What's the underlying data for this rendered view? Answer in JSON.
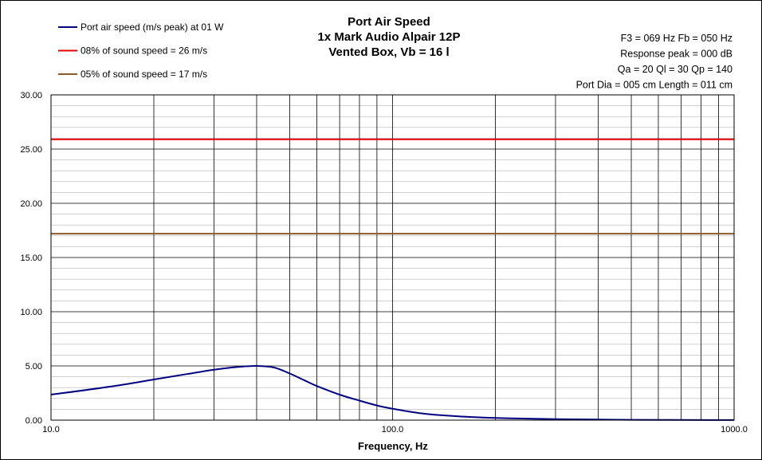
{
  "chart_data": {
    "type": "line",
    "title": [
      "Port Air  Speed",
      "1x Mark Audio Alpair 12P",
      "Vented Box, Vb = 16 l"
    ],
    "xlabel": "Frequency, Hz",
    "ylabel": "",
    "x_scale": "log",
    "xlim": [
      10,
      1000
    ],
    "ylim": [
      0,
      30
    ],
    "grid": true,
    "legend_position": "top-left",
    "x_tick_labels": [
      "10.0",
      "100.0",
      "1000.0"
    ],
    "y_tick_labels": [
      "0.00",
      "5.00",
      "10.00",
      "15.00",
      "20.00",
      "25.00",
      "30.00"
    ],
    "annotations": [
      "F3 = 069 Hz  Fb = 050 Hz",
      "Response  peak = 000 dB",
      "Qa = 20  Ql = 30  Qp = 140",
      "Port Dia = 005 cm  Length = 011 cm"
    ],
    "series": [
      {
        "name": "Port air speed (m/s peak) at 01 W",
        "color": "#000080",
        "x": [
          10,
          15,
          20,
          25,
          30,
          35,
          40,
          45,
          50,
          55,
          60,
          70,
          80,
          90,
          100,
          120,
          150,
          200,
          300,
          500,
          1000
        ],
        "y": [
          2.35,
          3.1,
          3.75,
          4.25,
          4.65,
          4.9,
          5.0,
          4.85,
          4.3,
          3.7,
          3.15,
          2.35,
          1.8,
          1.35,
          1.05,
          0.65,
          0.38,
          0.2,
          0.09,
          0.03,
          0.01
        ]
      },
      {
        "name": "08% of sound speed = 26 m/s",
        "color": "#e60000",
        "x": [
          10,
          1000
        ],
        "y": [
          25.9,
          25.9
        ]
      },
      {
        "name": "05% of sound speed = 17 m/s",
        "color": "#8c5a28",
        "x": [
          10,
          1000
        ],
        "y": [
          17.2,
          17.2
        ]
      }
    ]
  }
}
